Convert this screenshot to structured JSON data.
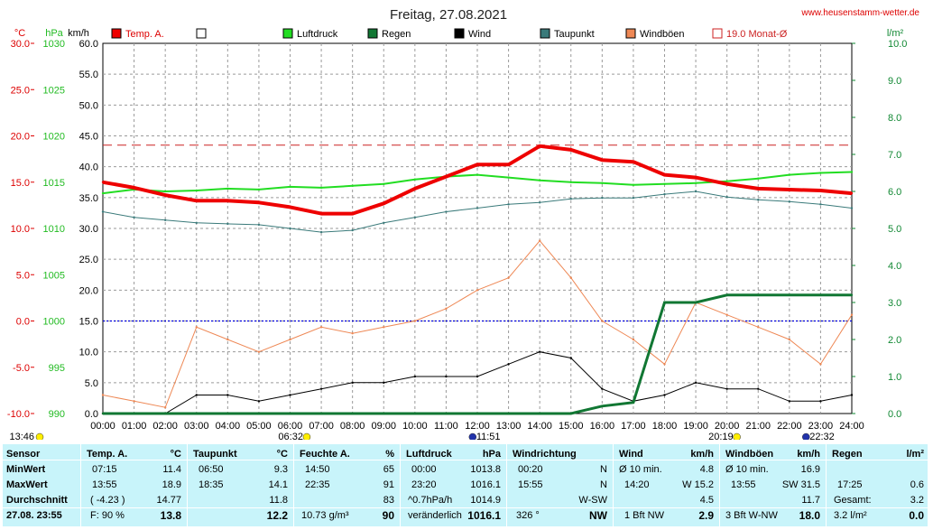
{
  "header": {
    "title": "Freitag, 27.08.2021",
    "website": "www.heusenstamm-wetter.de"
  },
  "axes": {
    "temp_unit": "°C",
    "press_unit": "hPa",
    "wind_unit": "km/h",
    "rain_unit": "l/m²",
    "temp_ticks": [
      "30.0",
      "25.0",
      "20.0",
      "15.0",
      "10.0",
      "5.0",
      "0.0",
      "-5.0",
      "-10.0"
    ],
    "press_ticks": [
      "1030",
      "1025",
      "1020",
      "1015",
      "1010",
      "1005",
      "1000",
      "995",
      "990"
    ],
    "wind_ticks": [
      "60.0",
      "55.0",
      "50.0",
      "45.0",
      "40.0",
      "35.0",
      "30.0",
      "25.0",
      "20.0",
      "15.0",
      "10.0",
      "5.0",
      "0.0"
    ],
    "rain_ticks": [
      "10.0",
      "9.0",
      "8.0",
      "7.0",
      "6.0",
      "5.0",
      "4.0",
      "3.0",
      "2.0",
      "1.0",
      "0.0"
    ],
    "time_ticks": [
      "00:00",
      "01:00",
      "02:00",
      "03:00",
      "04:00",
      "05:00",
      "06:00",
      "07:00",
      "08:00",
      "09:00",
      "10:00",
      "11:00",
      "12:00",
      "13:00",
      "14:00",
      "15:00",
      "16:00",
      "17:00",
      "18:00",
      "19:00",
      "20:00",
      "21:00",
      "22:00",
      "23:00",
      "24:00"
    ]
  },
  "legend": [
    {
      "label": "Temp. A.",
      "color": "#ee0000"
    },
    {
      "label": "",
      "color": "#ffffff"
    },
    {
      "label": "Luftdruck",
      "color": "#22dd22"
    },
    {
      "label": "Regen",
      "color": "#117733"
    },
    {
      "label": "Wind",
      "color": "#000000"
    },
    {
      "label": "Taupunkt",
      "color": "#3a7a7a"
    },
    {
      "label": "Windböen",
      "color": "#ee8855"
    },
    {
      "label": "19.0 Monat-Ø",
      "color": "#cc2222"
    }
  ],
  "events": {
    "sunrise": "06:32",
    "solar_noon": "11:51",
    "sunset": "20:19",
    "moonrise": "22:32",
    "moonset": "13:46"
  },
  "chart_data": {
    "type": "line",
    "title": "Freitag, 27.08.2021",
    "x_range": [
      "00:00",
      "24:00"
    ],
    "ylim_temp": [
      -10,
      30
    ],
    "ylim_pressure": [
      990,
      1030
    ],
    "ylim_wind": [
      0,
      60
    ],
    "ylim_rain": [
      0,
      10
    ],
    "grid": true,
    "x": [
      0,
      1,
      2,
      3,
      4,
      5,
      6,
      7,
      8,
      9,
      10,
      11,
      12,
      13,
      14,
      15,
      16,
      17,
      18,
      19,
      20,
      21,
      22,
      23,
      24
    ],
    "series": [
      {
        "name": "Temp. A.",
        "unit": "°C",
        "values": [
          15.0,
          14.4,
          13.6,
          13.0,
          13.0,
          12.8,
          12.3,
          11.6,
          11.6,
          12.7,
          14.3,
          15.6,
          16.9,
          16.9,
          18.9,
          18.5,
          17.4,
          17.2,
          15.8,
          15.5,
          14.8,
          14.3,
          14.2,
          14.1,
          13.8
        ]
      },
      {
        "name": "Luftdruck",
        "unit": "hPa",
        "values": [
          1013.8,
          1014.2,
          1014.0,
          1014.1,
          1014.3,
          1014.2,
          1014.5,
          1014.4,
          1014.6,
          1014.8,
          1015.3,
          1015.6,
          1015.8,
          1015.5,
          1015.2,
          1015.0,
          1014.9,
          1014.7,
          1014.8,
          1014.9,
          1015.1,
          1015.4,
          1015.8,
          1016.0,
          1016.1
        ]
      },
      {
        "name": "Taupunkt",
        "unit": "°C",
        "values": [
          11.8,
          11.2,
          10.9,
          10.6,
          10.5,
          10.4,
          10.0,
          9.6,
          9.8,
          10.6,
          11.2,
          11.8,
          12.2,
          12.6,
          12.8,
          13.2,
          13.3,
          13.3,
          13.7,
          14.0,
          13.4,
          13.1,
          12.9,
          12.6,
          12.2
        ]
      },
      {
        "name": "Wind",
        "unit": "km/h",
        "values": [
          0,
          0,
          0,
          3,
          3,
          2,
          3,
          4,
          5,
          5,
          6,
          6,
          6,
          8,
          10,
          9,
          4,
          2,
          3,
          5,
          4,
          4,
          2,
          2,
          3
        ]
      },
      {
        "name": "Windböen",
        "unit": "km/h",
        "values": [
          3,
          2,
          1,
          14,
          12,
          10,
          12,
          14,
          13,
          14,
          15,
          17,
          20,
          22,
          28,
          22,
          15,
          12,
          8,
          18,
          16,
          14,
          12,
          8,
          16
        ]
      },
      {
        "name": "Regen",
        "unit": "l/m²",
        "values": [
          0,
          0,
          0,
          0,
          0,
          0,
          0,
          0,
          0,
          0,
          0,
          0,
          0,
          0,
          0,
          0,
          0.2,
          0.3,
          3.0,
          3.0,
          3.2,
          3.2,
          3.2,
          3.2,
          3.2
        ]
      }
    ],
    "reference_lines": [
      {
        "label": "19.0 Monat-Ø",
        "unit": "°C",
        "value": 19.0
      }
    ]
  },
  "table": {
    "sensor": {
      "header": "Sensor",
      "rows": [
        "MinWert",
        "MaxWert",
        "Durchschnitt",
        "27.08. 23:55"
      ]
    },
    "temp": {
      "header": "Temp. A.",
      "unit": "°C",
      "rows": [
        [
          "07:15",
          "11.4"
        ],
        [
          "13:55",
          "18.9"
        ],
        [
          "( -4.23 )",
          "14.77"
        ],
        [
          "F: 90 %",
          "13.8"
        ]
      ]
    },
    "dew": {
      "header": "Taupunkt",
      "unit": "°C",
      "rows": [
        [
          "06:50",
          "9.3"
        ],
        [
          "18:35",
          "14.1"
        ],
        [
          "",
          "11.8"
        ],
        [
          "",
          "12.2"
        ]
      ]
    },
    "hum": {
      "header": "Feuchte A.",
      "unit": "%",
      "rows": [
        [
          "14:50",
          "65"
        ],
        [
          "22:35",
          "91"
        ],
        [
          "",
          "83"
        ],
        [
          "10.73 g/m³",
          "90"
        ]
      ]
    },
    "press": {
      "header": "Luftdruck",
      "unit": "hPa",
      "rows": [
        [
          "00:00",
          "1013.8"
        ],
        [
          "23:20",
          "1016.1"
        ],
        [
          "^0.7hPa/h",
          "1014.9"
        ],
        [
          "veränderlich",
          "1016.1"
        ]
      ]
    },
    "wdir": {
      "header": "Windrichtung",
      "rows": [
        [
          "00:20",
          "N"
        ],
        [
          "15:55",
          "N"
        ],
        [
          "",
          "W-SW"
        ],
        [
          "326 °",
          "NW"
        ]
      ]
    },
    "wind": {
      "header": "Wind",
      "unit": "km/h",
      "rows": [
        [
          "Ø 10 min.",
          "4.8"
        ],
        [
          "14:20",
          "W 15.2"
        ],
        [
          "",
          "4.5"
        ],
        [
          "1 Bft NW",
          "2.9"
        ]
      ]
    },
    "gust": {
      "header": "Windböen",
      "unit": "km/h",
      "rows": [
        [
          "Ø 10 min.",
          "16.9"
        ],
        [
          "13:55",
          "SW 31.5"
        ],
        [
          "",
          "11.7"
        ],
        [
          "3 Bft W-NW",
          "18.0"
        ]
      ]
    },
    "rain": {
      "header": "Regen",
      "unit": "l/m²",
      "rows": [
        [
          "",
          ""
        ],
        [
          "17:25",
          "0.6"
        ],
        [
          "Gesamt:",
          "3.2"
        ],
        [
          "3.2 l/m²",
          "0.0"
        ]
      ]
    }
  }
}
